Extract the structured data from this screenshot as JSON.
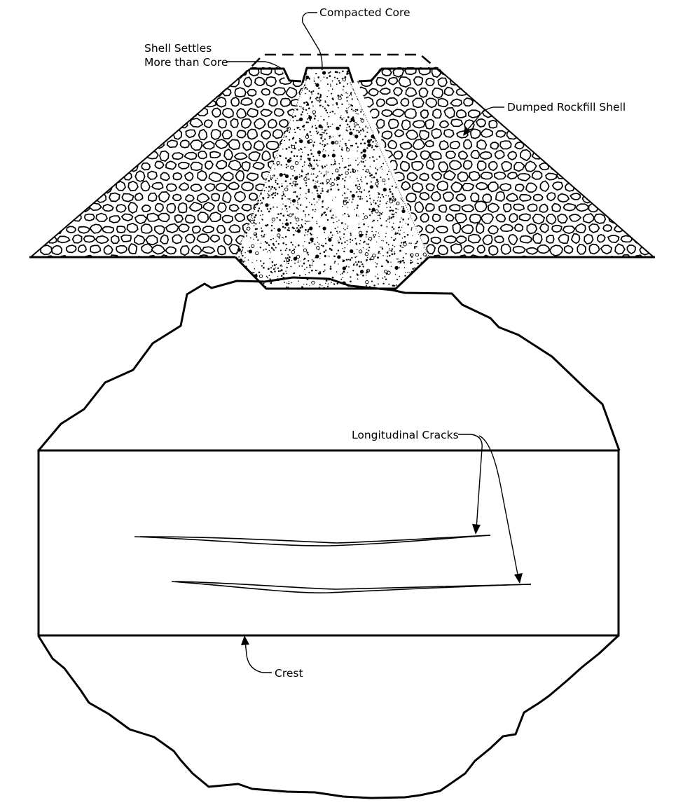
{
  "section_view": {
    "labels": {
      "shell_settles_line1": "Shell Settles",
      "shell_settles_line2": "More than Core",
      "compacted_core": "Compacted Core",
      "dumped_rockfill_shell": "Dumped Rockfill Shell"
    }
  },
  "plan_view": {
    "labels": {
      "longitudinal_cracks": "Longitudinal Cracks",
      "crest": "Crest"
    }
  }
}
